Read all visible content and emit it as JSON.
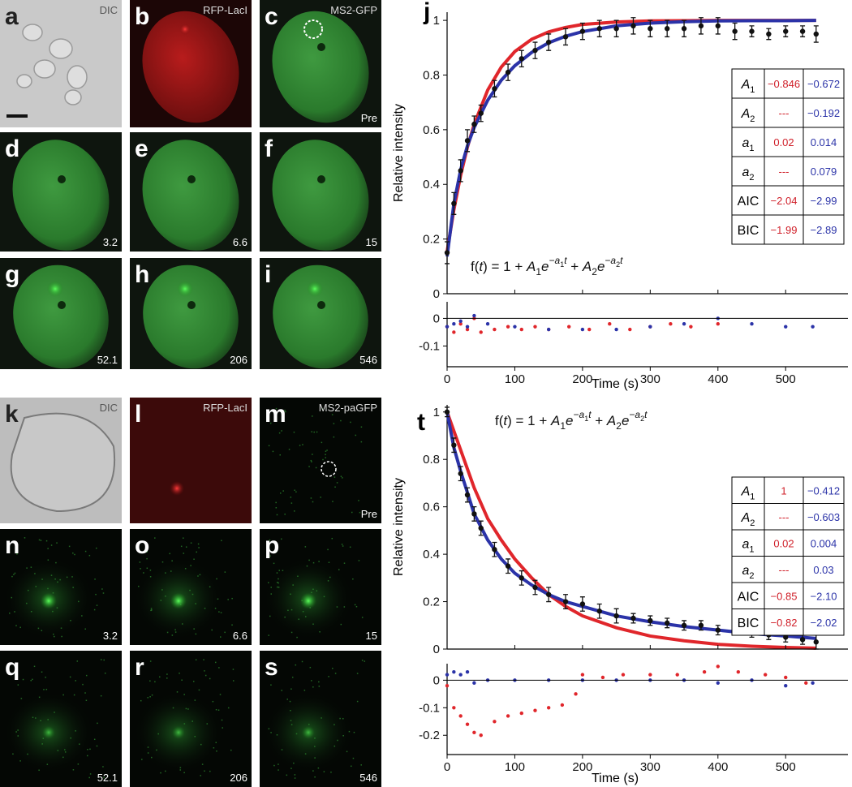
{
  "panels": [
    {
      "label": "a",
      "top_right": "DIC"
    },
    {
      "label": "b",
      "top_right": "RFP-LacI"
    },
    {
      "label": "c",
      "top_right": "MS2-GFP",
      "bottom_right": "Pre"
    },
    {
      "label": "d",
      "bottom_right": "3.2"
    },
    {
      "label": "e",
      "bottom_right": "6.6"
    },
    {
      "label": "f",
      "bottom_right": "15"
    },
    {
      "label": "g",
      "bottom_right": "52.1"
    },
    {
      "label": "h",
      "bottom_right": "206"
    },
    {
      "label": "i",
      "bottom_right": "546"
    },
    {
      "label": "k",
      "top_right": "DIC"
    },
    {
      "label": "l",
      "top_right": "RFP-LacI"
    },
    {
      "label": "m",
      "top_right": "MS2-paGFP",
      "bottom_right": "Pre"
    },
    {
      "label": "n",
      "bottom_right": "3.2"
    },
    {
      "label": "o",
      "bottom_right": "6.6"
    },
    {
      "label": "p",
      "bottom_right": "15"
    },
    {
      "label": "q",
      "bottom_right": "52.1"
    },
    {
      "label": "r",
      "bottom_right": "206"
    },
    {
      "label": "s",
      "bottom_right": "546"
    }
  ],
  "chart_data": [
    {
      "type": "line",
      "panel_label": "j",
      "ylabel": "Relative intensity",
      "xlabel": "Time (s)",
      "xlim": [
        0,
        592
      ],
      "xticks": [
        0,
        100,
        200,
        300,
        400,
        500
      ],
      "main": {
        "ylim": [
          0,
          1.03
        ],
        "yticks": [
          0,
          0.2,
          0.4,
          0.6,
          0.8,
          1
        ],
        "series": [
          {
            "style": "line",
            "color": "#e0262b",
            "x": [
              0,
              10,
              20,
              30,
              40,
              60,
              80,
              100,
              125,
              150,
              175,
              200,
              250,
              300,
              350,
              400,
              450,
              500,
              545
            ],
            "values": [
              0.154,
              0.307,
              0.433,
              0.536,
              0.62,
              0.745,
              0.829,
              0.886,
              0.931,
              0.958,
              0.974,
              0.985,
              0.994,
              0.998,
              0.999,
              1,
              1,
              1,
              1
            ]
          },
          {
            "style": "line",
            "color": "#2b33a8",
            "x": [
              0,
              10,
              20,
              30,
              40,
              60,
              80,
              100,
              125,
              150,
              175,
              200,
              250,
              300,
              350,
              400,
              450,
              500,
              545
            ],
            "values": [
              0.136,
              0.329,
              0.453,
              0.541,
              0.608,
              0.708,
              0.781,
              0.834,
              0.883,
              0.918,
              0.942,
              0.959,
              0.98,
              0.99,
              0.995,
              0.998,
              0.999,
              0.999,
              1
            ]
          },
          {
            "style": "errorpoints",
            "color": "#111111",
            "x": [
              0,
              10,
              20,
              30,
              40,
              50,
              70,
              90,
              110,
              130,
              150,
              175,
              200,
              225,
              250,
              275,
              300,
              325,
              350,
              375,
              400,
              425,
              450,
              475,
              500,
              525,
              545
            ],
            "values": [
              0.15,
              0.33,
              0.45,
              0.56,
              0.62,
              0.66,
              0.75,
              0.81,
              0.86,
              0.89,
              0.92,
              0.94,
              0.96,
              0.97,
              0.97,
              0.98,
              0.97,
              0.97,
              0.97,
              0.98,
              0.98,
              0.96,
              0.96,
              0.95,
              0.96,
              0.96,
              0.95
            ],
            "errors": [
              0.04,
              0.04,
              0.04,
              0.04,
              0.03,
              0.03,
              0.03,
              0.03,
              0.03,
              0.03,
              0.03,
              0.03,
              0.03,
              0.03,
              0.03,
              0.03,
              0.03,
              0.03,
              0.03,
              0.03,
              0.03,
              0.03,
              0.02,
              0.02,
              0.02,
              0.02,
              0.03
            ]
          }
        ]
      },
      "residuals": {
        "ylim": [
          -0.175,
          0.06
        ],
        "yticks": [
          0,
          -0.1
        ],
        "series": [
          {
            "style": "points",
            "color": "#e0262b",
            "x": [
              0,
              10,
              20,
              30,
              40,
              50,
              70,
              90,
              110,
              130,
              150,
              180,
              210,
              240,
              270,
              300,
              330,
              360,
              400
            ],
            "values": [
              -0.03,
              -0.05,
              -0.02,
              -0.04,
              0,
              -0.05,
              -0.04,
              -0.03,
              -0.04,
              -0.03,
              -0.04,
              -0.03,
              -0.04,
              -0.02,
              -0.04,
              -0.03,
              -0.02,
              -0.03,
              -0.02
            ]
          },
          {
            "style": "points",
            "color": "#2b33a8",
            "x": [
              0,
              10,
              20,
              30,
              40,
              60,
              100,
              150,
              200,
              250,
              300,
              350,
              400,
              450,
              500,
              540
            ],
            "values": [
              -0.03,
              -0.02,
              -0.01,
              -0.03,
              0.01,
              -0.02,
              -0.03,
              -0.04,
              -0.04,
              -0.04,
              -0.03,
              -0.02,
              0,
              -0.02,
              -0.03,
              -0.03
            ]
          }
        ]
      },
      "formula": [
        {
          "text": "f(",
          "role": "n"
        },
        {
          "text": "t",
          "role": "i"
        },
        {
          "text": ") = 1 + ",
          "role": "n"
        },
        {
          "text": "A",
          "role": "i"
        },
        {
          "text": "1",
          "role": "sub"
        },
        {
          "text": "e",
          "role": "i"
        },
        {
          "text": "−a",
          "role": "sup"
        },
        {
          "text": "1",
          "role": "supsub"
        },
        {
          "text": "t",
          "role": "sup"
        },
        {
          "text": " + ",
          "role": "n"
        },
        {
          "text": "A",
          "role": "i"
        },
        {
          "text": "2",
          "role": "sub"
        },
        {
          "text": "e",
          "role": "i"
        },
        {
          "text": "−a",
          "role": "sup"
        },
        {
          "text": "2",
          "role": "supsub"
        },
        {
          "text": "t",
          "role": "sup"
        }
      ],
      "table": [
        {
          "symbol": "A",
          "sub": "1",
          "cells": [
            "−0.846",
            "−0.672"
          ]
        },
        {
          "symbol": "A",
          "sub": "2",
          "cells": [
            "---",
            "−0.192"
          ]
        },
        {
          "symbol": "a",
          "sub": "1",
          "cells": [
            "0.02",
            "0.014"
          ]
        },
        {
          "symbol": "a",
          "sub": "2",
          "cells": [
            "---",
            "0.079"
          ]
        },
        {
          "symbol": "AIC",
          "cells": [
            "−2.04",
            "−2.99"
          ]
        },
        {
          "symbol": "BIC",
          "cells": [
            "−1.99",
            "−2.89"
          ]
        }
      ]
    },
    {
      "type": "line",
      "panel_label": "t",
      "ylabel": "Relative intensity",
      "xlabel": "Time (s)",
      "xlim": [
        0,
        592
      ],
      "xticks": [
        0,
        100,
        200,
        300,
        400,
        500
      ],
      "main": {
        "ylim": [
          0,
          1.03
        ],
        "yticks": [
          0,
          0.2,
          0.4,
          0.6,
          0.8,
          1
        ],
        "series": [
          {
            "style": "line",
            "color": "#e0262b",
            "x": [
              0,
              10,
              20,
              30,
              40,
              60,
              80,
              100,
              125,
              150,
              175,
              200,
              250,
              300,
              350,
              400,
              450,
              500,
              545
            ],
            "values": [
              1,
              0.92,
              0.84,
              0.76,
              0.68,
              0.55,
              0.46,
              0.38,
              0.3,
              0.23,
              0.18,
              0.14,
              0.09,
              0.055,
              0.035,
              0.02,
              0.012,
              0.007,
              0.004
            ]
          },
          {
            "style": "line",
            "color": "#2b33a8",
            "x": [
              0,
              10,
              20,
              30,
              40,
              60,
              80,
              100,
              125,
              150,
              175,
              200,
              250,
              300,
              350,
              400,
              450,
              500,
              545
            ],
            "values": [
              1,
              0.85,
              0.75,
              0.66,
              0.57,
              0.46,
              0.38,
              0.32,
              0.27,
              0.23,
              0.2,
              0.18,
              0.14,
              0.115,
              0.095,
              0.08,
              0.065,
              0.055,
              0.045
            ]
          },
          {
            "style": "errorpoints",
            "color": "#111111",
            "x": [
              0,
              10,
              20,
              30,
              40,
              50,
              70,
              90,
              110,
              130,
              150,
              175,
              200,
              225,
              250,
              275,
              300,
              325,
              350,
              375,
              400,
              425,
              450,
              475,
              500,
              525,
              545
            ],
            "values": [
              1,
              0.86,
              0.74,
              0.65,
              0.57,
              0.51,
              0.42,
              0.35,
              0.3,
              0.26,
              0.23,
              0.2,
              0.19,
              0.16,
              0.14,
              0.13,
              0.12,
              0.11,
              0.1,
              0.1,
              0.08,
              0.08,
              0.07,
              0.06,
              0.05,
              0.04,
              0.03
            ],
            "errors": [
              0.02,
              0.03,
              0.03,
              0.03,
              0.03,
              0.03,
              0.03,
              0.03,
              0.03,
              0.03,
              0.03,
              0.03,
              0.03,
              0.03,
              0.03,
              0.02,
              0.02,
              0.02,
              0.02,
              0.02,
              0.02,
              0.02,
              0.02,
              0.02,
              0.02,
              0.02,
              0.03
            ]
          }
        ]
      },
      "residuals": {
        "ylim": [
          -0.27,
          0.06
        ],
        "yticks": [
          0,
          -0.1,
          -0.2
        ],
        "series": [
          {
            "style": "points",
            "color": "#e0262b",
            "x": [
              0,
              10,
              20,
              30,
              40,
              50,
              70,
              90,
              110,
              130,
              150,
              170,
              190,
              200,
              230,
              260,
              300,
              340,
              380,
              400,
              430,
              470,
              500,
              530
            ],
            "values": [
              -0.02,
              -0.1,
              -0.13,
              -0.16,
              -0.19,
              -0.2,
              -0.15,
              -0.13,
              -0.12,
              -0.11,
              -0.1,
              -0.09,
              -0.05,
              0.02,
              0.01,
              0.02,
              0.02,
              0.02,
              0.03,
              0.05,
              0.03,
              0.02,
              0.01,
              -0.01
            ]
          },
          {
            "style": "points",
            "color": "#2b33a8",
            "x": [
              0,
              10,
              20,
              30,
              40,
              60,
              100,
              150,
              200,
              250,
              300,
              350,
              400,
              450,
              500,
              540
            ],
            "values": [
              0.02,
              0.03,
              0.02,
              0.03,
              -0.01,
              0,
              0,
              0,
              0,
              0,
              0,
              0,
              -0.01,
              0,
              -0.02,
              -0.01
            ]
          }
        ]
      },
      "formula": [
        {
          "text": "f(",
          "role": "n"
        },
        {
          "text": "t",
          "role": "i"
        },
        {
          "text": ") = 1 + ",
          "role": "n"
        },
        {
          "text": "A",
          "role": "i"
        },
        {
          "text": "1",
          "role": "sub"
        },
        {
          "text": "e",
          "role": "i"
        },
        {
          "text": "−a",
          "role": "sup"
        },
        {
          "text": "1",
          "role": "supsub"
        },
        {
          "text": "t",
          "role": "sup"
        },
        {
          "text": " + ",
          "role": "n"
        },
        {
          "text": "A",
          "role": "i"
        },
        {
          "text": "2",
          "role": "sub"
        },
        {
          "text": "e",
          "role": "i"
        },
        {
          "text": "−a",
          "role": "sup"
        },
        {
          "text": "2",
          "role": "supsub"
        },
        {
          "text": "t",
          "role": "sup"
        }
      ],
      "table": [
        {
          "symbol": "A",
          "sub": "1",
          "cells": [
            "1",
            "−0.412"
          ]
        },
        {
          "symbol": "A",
          "sub": "2",
          "cells": [
            "---",
            "−0.603"
          ]
        },
        {
          "symbol": "a",
          "sub": "1",
          "cells": [
            "0.02",
            "0.004"
          ]
        },
        {
          "symbol": "a",
          "sub": "2",
          "cells": [
            "---",
            "0.03"
          ]
        },
        {
          "symbol": "AIC",
          "cells": [
            "−0.85",
            "−2.10"
          ]
        },
        {
          "symbol": "BIC",
          "cells": [
            "−0.82",
            "−2.02"
          ]
        }
      ]
    }
  ]
}
